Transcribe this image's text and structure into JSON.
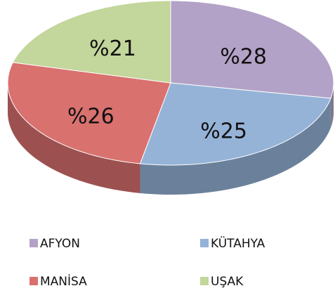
{
  "chart_data": {
    "type": "pie",
    "categories": [
      "AFYON",
      "KÜTAHYA",
      "MANİSA",
      "UŞAK"
    ],
    "values": [
      28,
      25,
      26,
      21
    ],
    "value_labels": [
      "%28",
      "%25",
      "%26",
      "%21"
    ],
    "colors": [
      "#b3a2c7",
      "#95b3d7",
      "#d9716f",
      "#c3d69b"
    ],
    "legend": "bottom"
  }
}
